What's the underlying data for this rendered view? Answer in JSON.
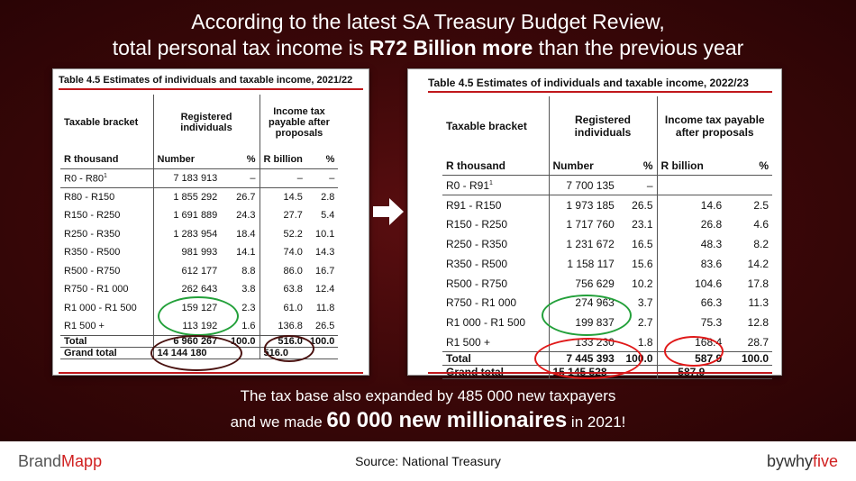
{
  "headline": {
    "line1": "According to the latest SA Treasury Budget Review,",
    "line2_pre": "total personal tax income is ",
    "line2_bold": "R72 Billion more",
    "line2_post": " than the previous year"
  },
  "left_table": {
    "title": "Table 4.5  Estimates of individuals and taxable income, 2021/22",
    "h_bracket": "Taxable bracket",
    "h_registered": "Registered individuals",
    "h_income": "Income tax payable after proposals",
    "sub_rthousand": "R thousand",
    "sub_number": "Number",
    "sub_pct1": "%",
    "sub_rbillion": "R billion",
    "sub_pct2": "%",
    "rows": [
      {
        "bracket": "R0 - R80",
        "sup": "1",
        "number": "7 183 913",
        "pct1": "–",
        "rb": "–",
        "pct2": "–"
      },
      {
        "bracket": "R80  - R150",
        "sup": "",
        "number": "1 855 292",
        "pct1": "26.7",
        "rb": "14.5",
        "pct2": "2.8"
      },
      {
        "bracket": "R150 - R250",
        "sup": "",
        "number": "1 691 889",
        "pct1": "24.3",
        "rb": "27.7",
        "pct2": "5.4"
      },
      {
        "bracket": "R250 - R350",
        "sup": "",
        "number": "1 283 954",
        "pct1": "18.4",
        "rb": "52.2",
        "pct2": "10.1"
      },
      {
        "bracket": "R350 - R500",
        "sup": "",
        "number": "981 993",
        "pct1": "14.1",
        "rb": "74.0",
        "pct2": "14.3"
      },
      {
        "bracket": "R500 - R750",
        "sup": "",
        "number": "612 177",
        "pct1": "8.8",
        "rb": "86.0",
        "pct2": "16.7"
      },
      {
        "bracket": "R750 - R1 000",
        "sup": "",
        "number": "262 643",
        "pct1": "3.8",
        "rb": "63.8",
        "pct2": "12.4"
      },
      {
        "bracket": "R1 000 - R1 500",
        "sup": "",
        "number": "159 127",
        "pct1": "2.3",
        "rb": "61.0",
        "pct2": "11.8"
      },
      {
        "bracket": "R1 500 +",
        "sup": "",
        "number": "113 192",
        "pct1": "1.6",
        "rb": "136.8",
        "pct2": "26.5"
      }
    ],
    "total": {
      "label": "Total",
      "number": "6 960 267",
      "pct1": "100.0",
      "rb": "516.0",
      "pct2": "100.0"
    },
    "grand": {
      "label": "Grand total",
      "number": "14 144 180",
      "rb": "516.0"
    }
  },
  "right_table": {
    "title": "Table 4.5  Estimates of individuals and taxable income, 2022/23",
    "h_bracket": "Taxable bracket",
    "h_registered": "Registered individuals",
    "h_income": "Income tax payable after proposals",
    "sub_rthousand": "R thousand",
    "sub_number": "Number",
    "sub_pct1": "%",
    "sub_rbillion": "R billion",
    "sub_pct2": "%",
    "rows": [
      {
        "bracket": "R0 - R91",
        "sup": "1",
        "number": "7 700 135",
        "pct1": "–",
        "rb": "",
        "pct2": ""
      },
      {
        "bracket": "R91  - R150",
        "sup": "",
        "number": "1 973 185",
        "pct1": "26.5",
        "rb": "14.6",
        "pct2": "2.5"
      },
      {
        "bracket": "R150 - R250",
        "sup": "",
        "number": "1 717 760",
        "pct1": "23.1",
        "rb": "26.8",
        "pct2": "4.6"
      },
      {
        "bracket": "R250 - R350",
        "sup": "",
        "number": "1 231 672",
        "pct1": "16.5",
        "rb": "48.3",
        "pct2": "8.2"
      },
      {
        "bracket": "R350 - R500",
        "sup": "",
        "number": "1 158 117",
        "pct1": "15.6",
        "rb": "83.6",
        "pct2": "14.2"
      },
      {
        "bracket": "R500 - R750",
        "sup": "",
        "number": "756 629",
        "pct1": "10.2",
        "rb": "104.6",
        "pct2": "17.8"
      },
      {
        "bracket": "R750 - R1 000",
        "sup": "",
        "number": "274 963",
        "pct1": "3.7",
        "rb": "66.3",
        "pct2": "11.3"
      },
      {
        "bracket": "R1 000 - R1 500",
        "sup": "",
        "number": "199 837",
        "pct1": "2.7",
        "rb": "75.3",
        "pct2": "12.8"
      },
      {
        "bracket": "R1 500 +",
        "sup": "",
        "number": "133 230",
        "pct1": "1.8",
        "rb": "168.4",
        "pct2": "28.7"
      }
    ],
    "total": {
      "label": "Total",
      "number": "7 445 393",
      "pct1": "100.0",
      "rb": "587.9",
      "pct2": "100.0"
    },
    "grand": {
      "label": "Grand total",
      "number": "15 145 528",
      "rb": "587.9"
    }
  },
  "caption": {
    "line1": "The tax base also expanded by 485 000 new taxpayers",
    "line2_pre": "and we made ",
    "line2_big": "60 000 new millionaires",
    "line2_post": " in 2021!"
  },
  "footer": {
    "brand_left_a": "Brand",
    "brand_left_b": "Mapp",
    "source": "Source: National Treasury",
    "brand_right_a": "bywhy",
    "brand_right_b": "five"
  },
  "colors": {
    "background": "#3a0708",
    "accent_red": "#c0181c",
    "ring_green": "#23a03a",
    "ring_red": "#e01818",
    "ring_brown": "#4a1210"
  }
}
